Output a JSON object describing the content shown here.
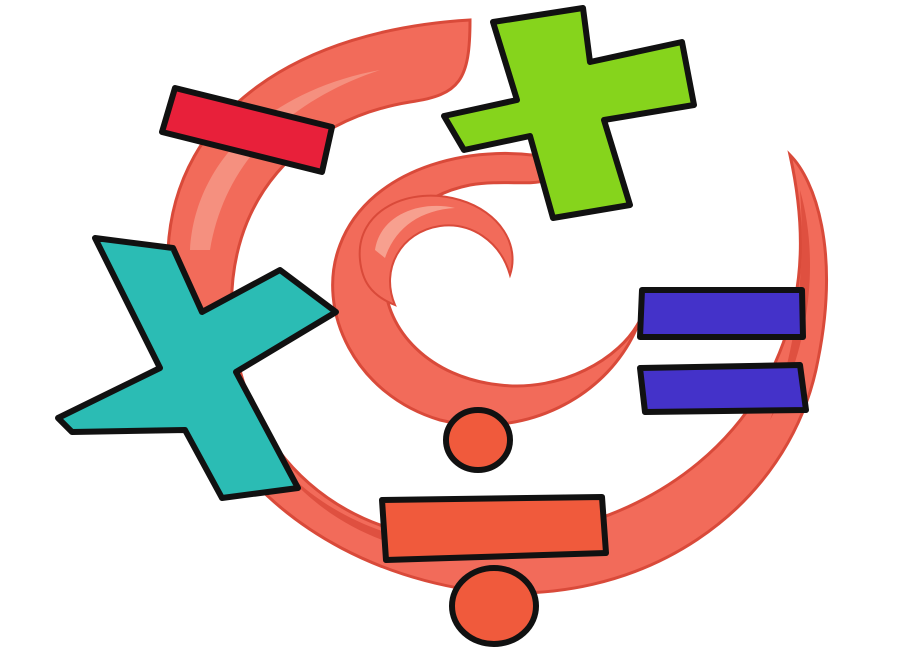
{
  "colors": {
    "background": "#ffffff",
    "spiral": "#f26b5a",
    "spiral_shadow": "#d94a3a",
    "spiral_highlight": "#f7a08f",
    "minus": "#e8203a",
    "plus": "#86d41c",
    "multiply": "#2bbcb4",
    "equals": "#4432c9",
    "divide": "#f05a3c",
    "outline": "#111111"
  },
  "icons": [
    "spiral-icon",
    "minus-icon",
    "plus-icon",
    "multiply-icon",
    "equals-icon",
    "divide-icon"
  ]
}
